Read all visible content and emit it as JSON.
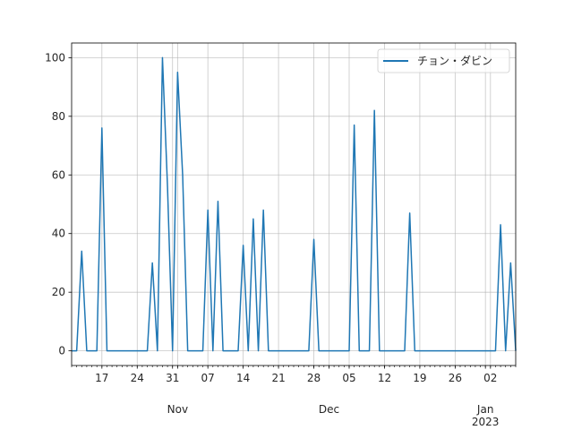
{
  "chart_data": {
    "type": "line",
    "series": [
      {
        "name": "チョン・ダビン",
        "color": "#1f77b4",
        "points": [
          [
            "2022-10-11",
            0
          ],
          [
            "2022-10-12",
            0
          ],
          [
            "2022-10-13",
            34
          ],
          [
            "2022-10-14",
            0
          ],
          [
            "2022-10-15",
            0
          ],
          [
            "2022-10-16",
            0
          ],
          [
            "2022-10-17",
            76
          ],
          [
            "2022-10-18",
            0
          ],
          [
            "2022-10-19",
            0
          ],
          [
            "2022-10-20",
            0
          ],
          [
            "2022-10-21",
            0
          ],
          [
            "2022-10-22",
            0
          ],
          [
            "2022-10-23",
            0
          ],
          [
            "2022-10-24",
            0
          ],
          [
            "2022-10-25",
            0
          ],
          [
            "2022-10-26",
            0
          ],
          [
            "2022-10-27",
            30
          ],
          [
            "2022-10-28",
            0
          ],
          [
            "2022-10-29",
            100
          ],
          [
            "2022-10-30",
            56
          ],
          [
            "2022-10-31",
            0
          ],
          [
            "2022-11-01",
            95
          ],
          [
            "2022-11-02",
            60
          ],
          [
            "2022-11-03",
            0
          ],
          [
            "2022-11-04",
            0
          ],
          [
            "2022-11-05",
            0
          ],
          [
            "2022-11-06",
            0
          ],
          [
            "2022-11-07",
            48
          ],
          [
            "2022-11-08",
            0
          ],
          [
            "2022-11-09",
            51
          ],
          [
            "2022-11-10",
            0
          ],
          [
            "2022-11-11",
            0
          ],
          [
            "2022-11-12",
            0
          ],
          [
            "2022-11-13",
            0
          ],
          [
            "2022-11-14",
            36
          ],
          [
            "2022-11-15",
            0
          ],
          [
            "2022-11-16",
            45
          ],
          [
            "2022-11-17",
            0
          ],
          [
            "2022-11-18",
            48
          ],
          [
            "2022-11-19",
            0
          ],
          [
            "2022-11-20",
            0
          ],
          [
            "2022-11-21",
            0
          ],
          [
            "2022-11-22",
            0
          ],
          [
            "2022-11-23",
            0
          ],
          [
            "2022-11-24",
            0
          ],
          [
            "2022-11-25",
            0
          ],
          [
            "2022-11-26",
            0
          ],
          [
            "2022-11-27",
            0
          ],
          [
            "2022-11-28",
            38
          ],
          [
            "2022-11-29",
            0
          ],
          [
            "2022-11-30",
            0
          ],
          [
            "2022-12-01",
            0
          ],
          [
            "2022-12-02",
            0
          ],
          [
            "2022-12-03",
            0
          ],
          [
            "2022-12-04",
            0
          ],
          [
            "2022-12-05",
            0
          ],
          [
            "2022-12-06",
            77
          ],
          [
            "2022-12-07",
            0
          ],
          [
            "2022-12-08",
            0
          ],
          [
            "2022-12-09",
            0
          ],
          [
            "2022-12-10",
            82
          ],
          [
            "2022-12-11",
            0
          ],
          [
            "2022-12-12",
            0
          ],
          [
            "2022-12-13",
            0
          ],
          [
            "2022-12-14",
            0
          ],
          [
            "2022-12-15",
            0
          ],
          [
            "2022-12-16",
            0
          ],
          [
            "2022-12-17",
            47
          ],
          [
            "2022-12-18",
            0
          ],
          [
            "2022-12-19",
            0
          ],
          [
            "2022-12-20",
            0
          ],
          [
            "2022-12-21",
            0
          ],
          [
            "2022-12-22",
            0
          ],
          [
            "2022-12-23",
            0
          ],
          [
            "2022-12-24",
            0
          ],
          [
            "2022-12-25",
            0
          ],
          [
            "2022-12-26",
            0
          ],
          [
            "2022-12-27",
            0
          ],
          [
            "2022-12-28",
            0
          ],
          [
            "2022-12-29",
            0
          ],
          [
            "2022-12-30",
            0
          ],
          [
            "2022-12-31",
            0
          ],
          [
            "2023-01-01",
            0
          ],
          [
            "2023-01-02",
            0
          ],
          [
            "2023-01-03",
            0
          ],
          [
            "2023-01-04",
            43
          ],
          [
            "2023-01-05",
            0
          ],
          [
            "2023-01-06",
            30
          ],
          [
            "2023-01-07",
            0
          ]
        ]
      }
    ],
    "xlim": [
      "2022-10-11",
      "2023-01-07"
    ],
    "ylim": [
      -5,
      105
    ],
    "yticks": [
      0,
      20,
      40,
      60,
      80,
      100
    ],
    "xticks": [
      {
        "date": "2022-10-17",
        "label": "17"
      },
      {
        "date": "2022-10-24",
        "label": "24"
      },
      {
        "date": "2022-10-31",
        "label": "31"
      },
      {
        "date": "2022-11-07",
        "label": "07"
      },
      {
        "date": "2022-11-14",
        "label": "14"
      },
      {
        "date": "2022-11-21",
        "label": "21"
      },
      {
        "date": "2022-11-28",
        "label": "28"
      },
      {
        "date": "2022-12-05",
        "label": "05"
      },
      {
        "date": "2022-12-12",
        "label": "12"
      },
      {
        "date": "2022-12-19",
        "label": "19"
      },
      {
        "date": "2022-12-26",
        "label": "26"
      },
      {
        "date": "2023-01-02",
        "label": "02"
      }
    ],
    "month_ticks": [
      {
        "date": "2022-11-01",
        "label": "Nov"
      },
      {
        "date": "2022-12-01",
        "label": "Dec"
      },
      {
        "date": "2023-01-01",
        "label": "Jan",
        "sublabel": "2023"
      }
    ],
    "grid": true,
    "legend": "top-right"
  }
}
